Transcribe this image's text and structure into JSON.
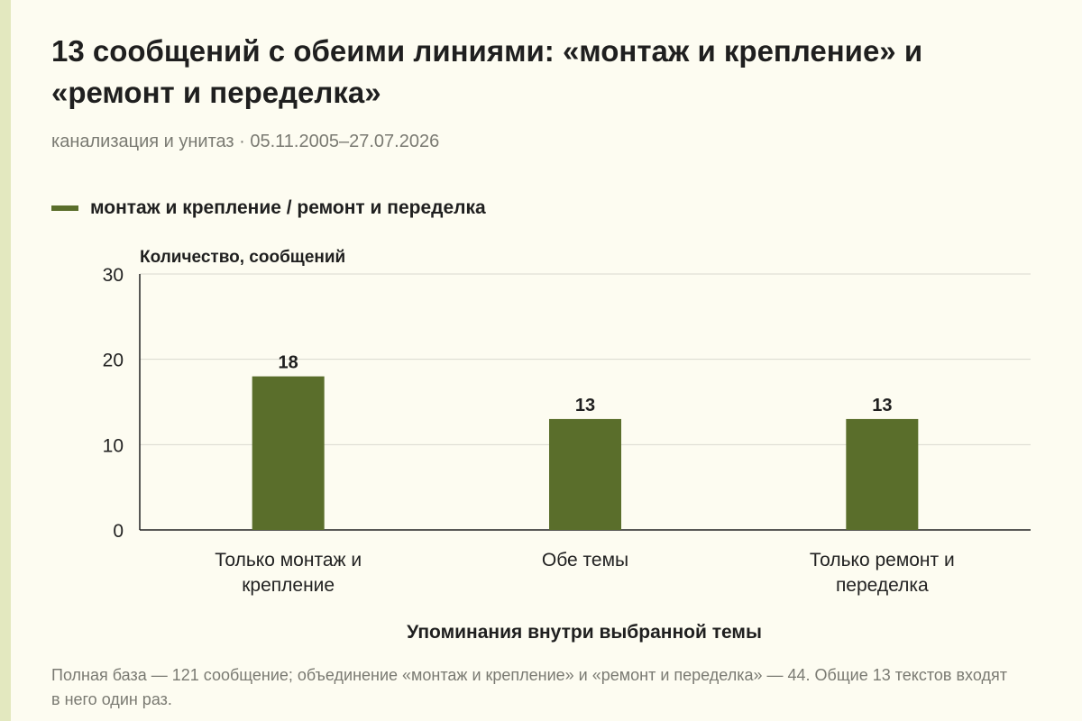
{
  "header": {
    "title": "13 сообщений с обеими линиями: «монтаж и крепление» и «ремонт и переделка»",
    "subtitle": "канализация и унитаз · 05.11.2005–27.07.2026"
  },
  "legend": {
    "label": "монтаж и крепление / ремонт и переделка",
    "color": "#5a6e2b"
  },
  "footnote": "Полная база — 121 сообщение; объединение «монтаж и крепление» и «ремонт и переделка» — 44. Общие 13 текстов входят в него один раз.",
  "chart_data": {
    "type": "bar",
    "categories": [
      [
        "Только монтаж и",
        "крепление"
      ],
      [
        "Обе темы"
      ],
      [
        "Только ремонт и",
        "переделка"
      ]
    ],
    "series": [
      {
        "values": [
          18,
          13,
          13
        ],
        "color": "#5a6e2b"
      }
    ],
    "data_labels": [
      "18",
      "13",
      "13"
    ],
    "ylabel": "Количество, сообщений",
    "xlabel": "Упоминания внутри выбранной темы",
    "ylim": [
      0,
      30
    ],
    "yticks": [
      0,
      10,
      20,
      30
    ],
    "grid": true
  }
}
